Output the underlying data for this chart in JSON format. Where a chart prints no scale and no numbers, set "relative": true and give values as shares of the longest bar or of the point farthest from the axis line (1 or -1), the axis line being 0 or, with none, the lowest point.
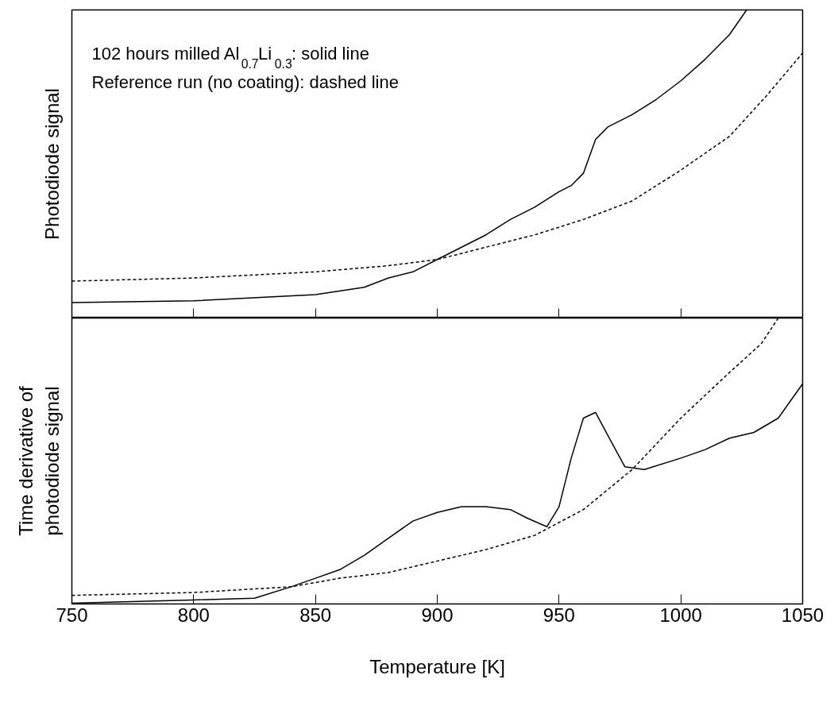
{
  "chart_data": [
    {
      "type": "line",
      "relative": true,
      "ylabel": "Photodiode signal",
      "xlim": [
        750,
        1050
      ],
      "xticks": [
        750,
        800,
        850,
        900,
        950,
        1000,
        1050
      ],
      "tick_labels": false,
      "grid": false,
      "annotations": [
        "102 hours milled Al$_{0.7}$Li$_{0.3}$: solid line",
        "Reference run (no coating): dashed line"
      ],
      "series": [
        {
          "color": "#000000",
          "line_style": "solid",
          "x": [
            750,
            800,
            850,
            870,
            880,
            890,
            900,
            910,
            920,
            930,
            940,
            950,
            955,
            960,
            965,
            970,
            980,
            990,
            1000,
            1010,
            1020,
            1027
          ],
          "values": [
            0.05,
            0.056,
            0.076,
            0.1,
            0.13,
            0.15,
            0.19,
            0.23,
            0.27,
            0.32,
            0.36,
            0.41,
            0.43,
            0.47,
            0.58,
            0.62,
            0.66,
            0.71,
            0.77,
            0.84,
            0.92,
            1.0
          ]
        },
        {
          "color": "#000000",
          "line_style": "dashed",
          "x": [
            750,
            800,
            850,
            880,
            900,
            920,
            940,
            960,
            980,
            1000,
            1020,
            1035,
            1050
          ],
          "values": [
            0.12,
            0.13,
            0.15,
            0.17,
            0.19,
            0.23,
            0.27,
            0.32,
            0.38,
            0.48,
            0.59,
            0.72,
            0.86
          ]
        }
      ]
    },
    {
      "type": "line",
      "relative": true,
      "ylabel": "Time derivative of\nphotodiode signal",
      "xlabel": "Temperature [K]",
      "xlim": [
        750,
        1050
      ],
      "xticks": [
        750,
        800,
        850,
        900,
        950,
        1000,
        1050
      ],
      "tick_labels": "x",
      "grid": false,
      "series": [
        {
          "color": "#000000",
          "line_style": "solid",
          "x": [
            750,
            800,
            825,
            840,
            850,
            860,
            870,
            880,
            890,
            900,
            910,
            920,
            930,
            937,
            945,
            950,
            955,
            960,
            965,
            970,
            977,
            985,
            1000,
            1010,
            1020,
            1030,
            1040,
            1050
          ],
          "values": [
            0.003,
            0.014,
            0.02,
            0.06,
            0.09,
            0.12,
            0.17,
            0.23,
            0.29,
            0.32,
            0.34,
            0.34,
            0.33,
            0.3,
            0.27,
            0.34,
            0.51,
            0.65,
            0.67,
            0.59,
            0.48,
            0.47,
            0.51,
            0.54,
            0.58,
            0.6,
            0.65,
            0.77
          ]
        },
        {
          "color": "#000000",
          "line_style": "dashed",
          "x": [
            750,
            800,
            840,
            860,
            880,
            900,
            920,
            940,
            960,
            980,
            1000,
            1020,
            1033,
            1040
          ],
          "values": [
            0.03,
            0.04,
            0.06,
            0.09,
            0.11,
            0.15,
            0.19,
            0.24,
            0.33,
            0.47,
            0.65,
            0.81,
            0.91,
            1.0
          ]
        }
      ]
    }
  ]
}
